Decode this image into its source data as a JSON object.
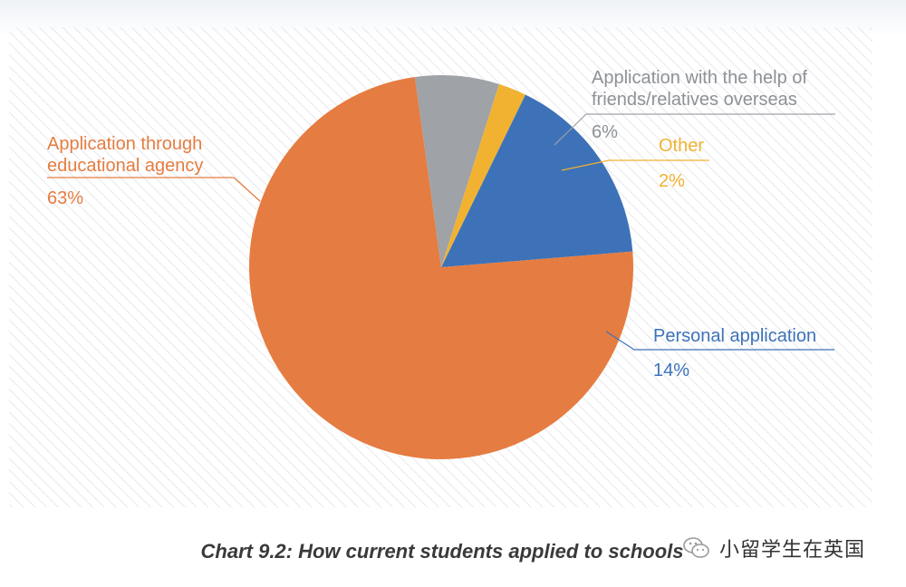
{
  "chart_data": {
    "type": "pie",
    "title": "",
    "slices": [
      {
        "label": "Personal application",
        "value": 14,
        "display": "14%",
        "color": "#3d72b8"
      },
      {
        "label": "Application through educational agency",
        "value": 63,
        "display": "63%",
        "color": "#e57c41"
      },
      {
        "label": "Application with the help of friends/relatives overseas",
        "value": 6,
        "display": "6%",
        "color": "#9fa2a6"
      },
      {
        "label": "Other",
        "value": 2,
        "display": "2%",
        "color": "#f1b232"
      }
    ],
    "labels": {
      "agency": {
        "line1": "Application through",
        "line2": "educational agency",
        "pct": "63%"
      },
      "friends": {
        "line1": "Application with the help of",
        "line2": "friends/relatives overseas",
        "pct": "6%"
      },
      "other": {
        "line1": "Other",
        "pct": "2%"
      },
      "personal": {
        "line1": "Personal application",
        "pct": "14%"
      }
    }
  },
  "caption": "Chart 9.2: How current students applied to schools",
  "watermark": {
    "text": "小留学生在英国",
    "icon": "wechat-icon"
  }
}
